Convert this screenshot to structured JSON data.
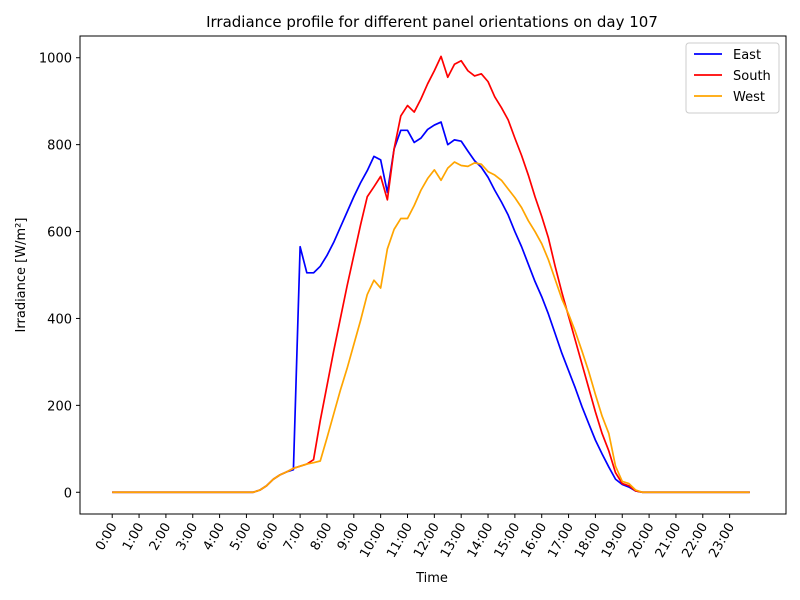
{
  "chart_data": {
    "type": "line",
    "title": "Irradiance profile for different panel orientations on day 107",
    "xlabel": "Time",
    "ylabel": "Irradiance [W/m²]",
    "x_unit": "hours of day",
    "xlim": [
      -1.2,
      25.1
    ],
    "ylim": [
      -50,
      1050
    ],
    "grid": false,
    "legend_position": "top-right",
    "x_ticks": [
      0,
      1,
      2,
      3,
      4,
      5,
      6,
      7,
      8,
      9,
      10,
      11,
      12,
      13,
      14,
      15,
      16,
      17,
      18,
      19,
      20,
      21,
      22,
      23
    ],
    "x_tick_labels": [
      "0:00",
      "1:00",
      "2:00",
      "3:00",
      "4:00",
      "5:00",
      "6:00",
      "7:00",
      "8:00",
      "9:00",
      "10:00",
      "11:00",
      "12:00",
      "13:00",
      "14:00",
      "15:00",
      "16:00",
      "17:00",
      "18:00",
      "19:00",
      "20:00",
      "21:00",
      "22:00",
      "23:00"
    ],
    "y_ticks": [
      0,
      200,
      400,
      600,
      800,
      1000
    ],
    "y_tick_labels": [
      "0",
      "200",
      "400",
      "600",
      "800",
      "1000"
    ],
    "series": [
      {
        "name": "East",
        "color": "#0000ff",
        "points": [
          [
            0,
            0
          ],
          [
            5.25,
            0
          ],
          [
            5.5,
            5
          ],
          [
            5.75,
            15
          ],
          [
            6,
            30
          ],
          [
            6.25,
            40
          ],
          [
            6.5,
            47
          ],
          [
            6.75,
            52
          ],
          [
            7,
            565
          ],
          [
            7.25,
            505
          ],
          [
            7.5,
            505
          ],
          [
            7.75,
            520
          ],
          [
            8,
            545
          ],
          [
            8.25,
            575
          ],
          [
            8.5,
            610
          ],
          [
            8.75,
            645
          ],
          [
            9,
            680
          ],
          [
            9.25,
            712
          ],
          [
            9.5,
            740
          ],
          [
            9.75,
            773
          ],
          [
            10,
            765
          ],
          [
            10.25,
            690
          ],
          [
            10.5,
            790
          ],
          [
            10.75,
            833
          ],
          [
            11,
            833
          ],
          [
            11.25,
            805
          ],
          [
            11.5,
            815
          ],
          [
            11.75,
            835
          ],
          [
            12,
            845
          ],
          [
            12.25,
            852
          ],
          [
            12.5,
            800
          ],
          [
            12.75,
            811
          ],
          [
            13,
            808
          ],
          [
            13.25,
            785
          ],
          [
            13.5,
            763
          ],
          [
            13.75,
            748
          ],
          [
            14,
            725
          ],
          [
            14.25,
            695
          ],
          [
            14.5,
            668
          ],
          [
            14.75,
            638
          ],
          [
            15,
            600
          ],
          [
            15.25,
            565
          ],
          [
            15.5,
            525
          ],
          [
            15.75,
            485
          ],
          [
            16,
            450
          ],
          [
            16.25,
            410
          ],
          [
            16.5,
            365
          ],
          [
            16.75,
            320
          ],
          [
            17,
            280
          ],
          [
            17.25,
            240
          ],
          [
            17.5,
            197
          ],
          [
            17.75,
            158
          ],
          [
            18,
            120
          ],
          [
            18.25,
            88
          ],
          [
            18.5,
            58
          ],
          [
            18.75,
            30
          ],
          [
            19,
            18
          ],
          [
            19.25,
            12
          ],
          [
            19.5,
            3
          ],
          [
            19.75,
            0
          ],
          [
            23.75,
            0
          ]
        ]
      },
      {
        "name": "South",
        "color": "#ff0000",
        "points": [
          [
            0,
            0
          ],
          [
            5.25,
            0
          ],
          [
            5.5,
            5
          ],
          [
            5.75,
            15
          ],
          [
            6,
            30
          ],
          [
            6.25,
            40
          ],
          [
            6.5,
            47
          ],
          [
            6.75,
            55
          ],
          [
            7,
            60
          ],
          [
            7.25,
            65
          ],
          [
            7.5,
            75
          ],
          [
            7.75,
            165
          ],
          [
            8,
            245
          ],
          [
            8.25,
            325
          ],
          [
            8.5,
            400
          ],
          [
            8.75,
            475
          ],
          [
            9,
            545
          ],
          [
            9.25,
            615
          ],
          [
            9.5,
            680
          ],
          [
            9.75,
            703
          ],
          [
            10,
            727
          ],
          [
            10.25,
            673
          ],
          [
            10.5,
            790
          ],
          [
            10.75,
            866
          ],
          [
            11,
            890
          ],
          [
            11.25,
            875
          ],
          [
            11.5,
            905
          ],
          [
            11.75,
            940
          ],
          [
            12,
            970
          ],
          [
            12.25,
            1003
          ],
          [
            12.5,
            955
          ],
          [
            12.75,
            985
          ],
          [
            13,
            993
          ],
          [
            13.25,
            970
          ],
          [
            13.5,
            958
          ],
          [
            13.75,
            963
          ],
          [
            14,
            945
          ],
          [
            14.25,
            910
          ],
          [
            14.5,
            885
          ],
          [
            14.75,
            857
          ],
          [
            15,
            815
          ],
          [
            15.25,
            775
          ],
          [
            15.5,
            730
          ],
          [
            15.75,
            680
          ],
          [
            16,
            635
          ],
          [
            16.25,
            585
          ],
          [
            16.5,
            520
          ],
          [
            16.75,
            460
          ],
          [
            17,
            405
          ],
          [
            17.25,
            350
          ],
          [
            17.5,
            295
          ],
          [
            17.75,
            240
          ],
          [
            18,
            185
          ],
          [
            18.25,
            135
          ],
          [
            18.5,
            95
          ],
          [
            18.75,
            45
          ],
          [
            19,
            20
          ],
          [
            19.25,
            15
          ],
          [
            19.5,
            3
          ],
          [
            19.75,
            0
          ],
          [
            23.75,
            0
          ]
        ]
      },
      {
        "name": "West",
        "color": "#ffa500",
        "points": [
          [
            0,
            0
          ],
          [
            5.25,
            0
          ],
          [
            5.5,
            5
          ],
          [
            5.75,
            15
          ],
          [
            6,
            30
          ],
          [
            6.25,
            40
          ],
          [
            6.5,
            47
          ],
          [
            6.75,
            55
          ],
          [
            7,
            60
          ],
          [
            7.25,
            65
          ],
          [
            7.5,
            68
          ],
          [
            7.75,
            72
          ],
          [
            8,
            125
          ],
          [
            8.25,
            180
          ],
          [
            8.5,
            235
          ],
          [
            8.75,
            285
          ],
          [
            9,
            340
          ],
          [
            9.25,
            395
          ],
          [
            9.5,
            455
          ],
          [
            9.75,
            488
          ],
          [
            10,
            470
          ],
          [
            10.25,
            560
          ],
          [
            10.5,
            605
          ],
          [
            10.75,
            630
          ],
          [
            11,
            630
          ],
          [
            11.25,
            660
          ],
          [
            11.5,
            695
          ],
          [
            11.75,
            722
          ],
          [
            12,
            742
          ],
          [
            12.25,
            718
          ],
          [
            12.5,
            746
          ],
          [
            12.75,
            760
          ],
          [
            13,
            752
          ],
          [
            13.25,
            750
          ],
          [
            13.5,
            758
          ],
          [
            13.75,
            755
          ],
          [
            14,
            738
          ],
          [
            14.25,
            730
          ],
          [
            14.5,
            718
          ],
          [
            14.75,
            698
          ],
          [
            15,
            678
          ],
          [
            15.25,
            655
          ],
          [
            15.5,
            625
          ],
          [
            15.75,
            600
          ],
          [
            16,
            572
          ],
          [
            16.25,
            535
          ],
          [
            16.5,
            490
          ],
          [
            16.75,
            445
          ],
          [
            17,
            410
          ],
          [
            17.25,
            370
          ],
          [
            17.5,
            325
          ],
          [
            17.75,
            278
          ],
          [
            18,
            225
          ],
          [
            18.25,
            175
          ],
          [
            18.5,
            135
          ],
          [
            18.75,
            60
          ],
          [
            19,
            25
          ],
          [
            19.25,
            20
          ],
          [
            19.5,
            5
          ],
          [
            19.75,
            0
          ],
          [
            23.75,
            0
          ]
        ]
      }
    ]
  }
}
